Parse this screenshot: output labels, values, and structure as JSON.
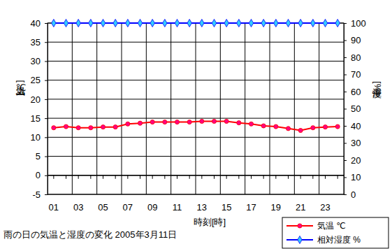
{
  "chart_data": {
    "type": "line",
    "title": "雨の日の気温と湿度の変化 2005年3月11日",
    "x_label": "時刻[時]",
    "y_label": "気温[℃]",
    "y2_label": "湿度[%]",
    "categories": [
      "01",
      null,
      "03",
      null,
      "05",
      null,
      "07",
      null,
      "09",
      null,
      "11",
      null,
      "13",
      null,
      "15",
      null,
      "17",
      null,
      "19",
      null,
      "21",
      null,
      "23",
      null
    ],
    "series": [
      {
        "name": "気温 ℃",
        "color": "#ff0000",
        "marker": "circle",
        "values": [
          12.5,
          12.8,
          12.5,
          12.5,
          12.7,
          12.7,
          13.5,
          13.7,
          14.0,
          14.0,
          14.0,
          14.0,
          14.2,
          14.2,
          14.2,
          13.8,
          13.5,
          13.0,
          12.8,
          12.3,
          11.8,
          12.5,
          12.7,
          12.8
        ]
      },
      {
        "name": "相対湿度 %",
        "color": "#0000ff",
        "marker": "diamond",
        "axis": "y2",
        "values": [
          100,
          100,
          100,
          100,
          100,
          100,
          100,
          100,
          100,
          100,
          100,
          100,
          100,
          100,
          100,
          100,
          100,
          100,
          100,
          100,
          100,
          100,
          100,
          100
        ]
      }
    ],
    "ylim": [
      -5,
      40
    ],
    "yticks": [
      -5,
      0,
      5,
      10,
      15,
      20,
      25,
      30,
      35,
      40
    ],
    "y2lim": [
      0,
      100
    ],
    "y2ticks": [
      0,
      10,
      20,
      30,
      40,
      50,
      60,
      70,
      80,
      90,
      100
    ],
    "grid": true,
    "legend": "bottom-right"
  }
}
